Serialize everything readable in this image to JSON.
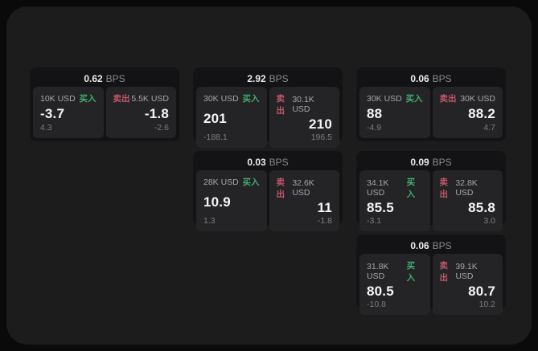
{
  "colors": {
    "page_bg": "#0a0a0a",
    "panel_bg": "#1c1c1d",
    "card_bg": "#131315",
    "tile_bg": "#242426",
    "buy_green": "#3fae72",
    "sell_red": "#c2566a",
    "text_primary": "#f5f5f5",
    "text_secondary": "#a6a6a8",
    "text_muted": "#7d7d80"
  },
  "labels": {
    "bps_unit": "BPS",
    "buy": "买入",
    "sell": "卖出"
  },
  "cards": [
    {
      "bps": "0.62",
      "buy": {
        "size": "10K USD",
        "price": "-3.7",
        "delta": "4.3"
      },
      "sell": {
        "size": "5.5K USD",
        "price": "-1.8",
        "delta": "-2.6"
      }
    },
    {
      "bps": "2.92",
      "buy": {
        "size": "30K USD",
        "price": "201",
        "delta": "-188.1"
      },
      "sell": {
        "size": "30.1K USD",
        "price": "210",
        "delta": "196.5"
      }
    },
    {
      "bps": "0.06",
      "buy": {
        "size": "30K USD",
        "price": "88",
        "delta": "-4.9"
      },
      "sell": {
        "size": "30K USD",
        "price": "88.2",
        "delta": "4.7"
      }
    },
    {
      "bps": "0.03",
      "buy": {
        "size": "28K USD",
        "price": "10.9",
        "delta": "1.3"
      },
      "sell": {
        "size": "32.6K USD",
        "price": "11",
        "delta": "-1.8"
      }
    },
    {
      "bps": "0.09",
      "buy": {
        "size": "34.1K USD",
        "price": "85.5",
        "delta": "-3.1"
      },
      "sell": {
        "size": "32.8K USD",
        "price": "85.8",
        "delta": "3.0"
      }
    },
    {
      "bps": "0.06",
      "buy": {
        "size": "31.8K USD",
        "price": "80.5",
        "delta": "-10.8"
      },
      "sell": {
        "size": "39.1K USD",
        "price": "80.7",
        "delta": "10.2"
      }
    }
  ]
}
